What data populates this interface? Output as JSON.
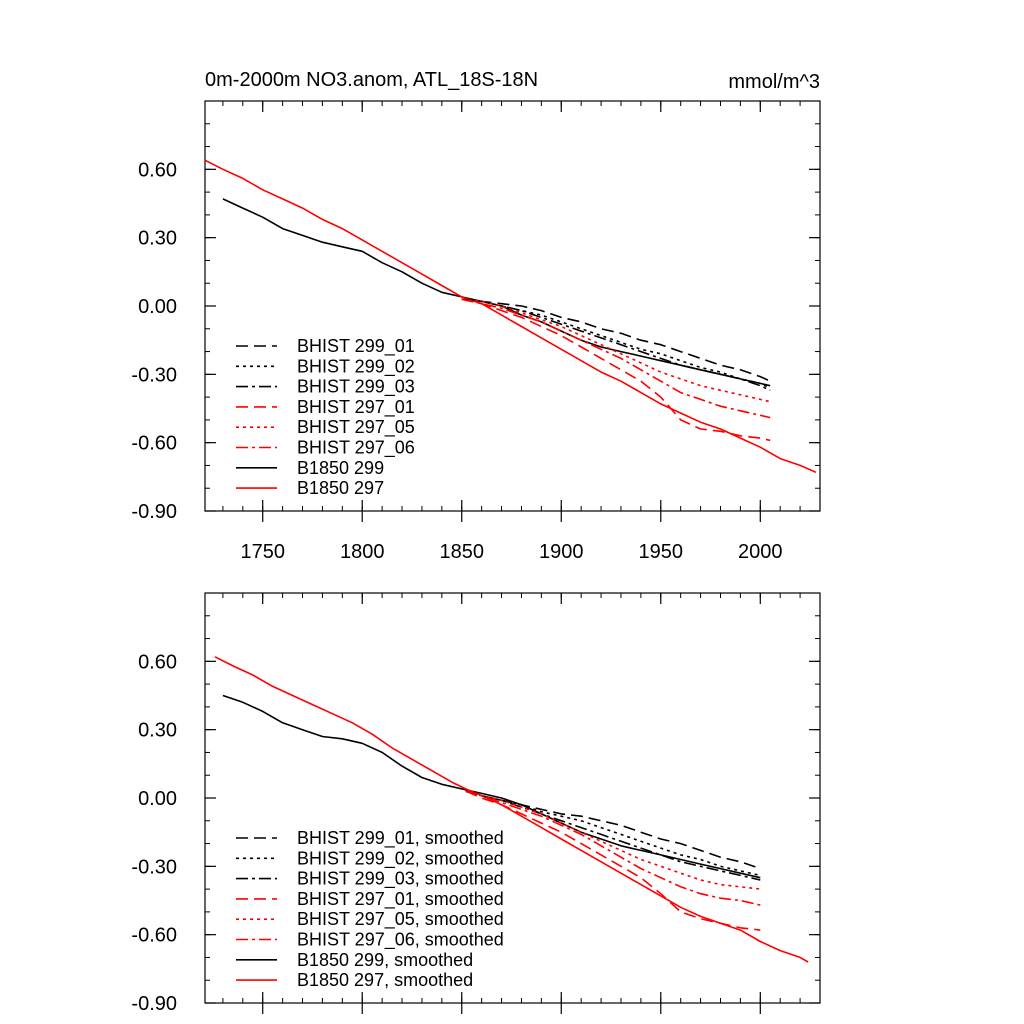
{
  "chart_data": [
    {
      "type": "line",
      "title": "0m-2000m NO3.anom, ATL_18S-18N",
      "units": "mmol/m^3",
      "xlim": [
        1721,
        2030
      ],
      "ylim": [
        -0.9,
        0.9
      ],
      "xticks": [
        1750,
        1800,
        1850,
        1900,
        1950,
        2000
      ],
      "xtick_labels": [
        "1750",
        "1800",
        "1850",
        "1900",
        "1950",
        "2000"
      ],
      "yticks": [
        0.6,
        0.3,
        0.0,
        -0.3,
        -0.6,
        -0.9
      ],
      "ytick_labels": [
        "0.60",
        "0.30",
        "0.00",
        "-0.30",
        "-0.60",
        "-0.90"
      ],
      "legend_position": "lower-left",
      "series": [
        {
          "name": "BHIST 299_01",
          "color": "#000000",
          "dash": "dashed",
          "x": [
            1850,
            1860,
            1870,
            1880,
            1890,
            1900,
            1910,
            1920,
            1930,
            1940,
            1950,
            1960,
            1970,
            1980,
            1990,
            2000,
            2005
          ],
          "y": [
            0.03,
            0.02,
            0.01,
            0.0,
            -0.02,
            -0.05,
            -0.07,
            -0.1,
            -0.12,
            -0.15,
            -0.17,
            -0.2,
            -0.23,
            -0.26,
            -0.28,
            -0.31,
            -0.33
          ]
        },
        {
          "name": "BHIST 299_02",
          "color": "#000000",
          "dash": "dotted",
          "x": [
            1850,
            1860,
            1870,
            1880,
            1890,
            1900,
            1910,
            1920,
            1930,
            1940,
            1950,
            1960,
            1970,
            1980,
            1990,
            2000,
            2005
          ],
          "y": [
            0.03,
            0.02,
            0.0,
            -0.02,
            -0.04,
            -0.07,
            -0.1,
            -0.13,
            -0.16,
            -0.19,
            -0.21,
            -0.24,
            -0.27,
            -0.29,
            -0.32,
            -0.34,
            -0.36
          ]
        },
        {
          "name": "BHIST 299_03",
          "color": "#000000",
          "dash": "dashdot",
          "x": [
            1850,
            1860,
            1870,
            1880,
            1890,
            1900,
            1910,
            1920,
            1930,
            1940,
            1950,
            1960,
            1970,
            1980,
            1990,
            2000,
            2005
          ],
          "y": [
            0.03,
            0.02,
            0.0,
            -0.02,
            -0.05,
            -0.08,
            -0.11,
            -0.14,
            -0.17,
            -0.2,
            -0.23,
            -0.26,
            -0.28,
            -0.3,
            -0.32,
            -0.35,
            -0.37
          ]
        },
        {
          "name": "BHIST 297_01",
          "color": "#ff0000",
          "dash": "dashed",
          "x": [
            1850,
            1860,
            1870,
            1880,
            1890,
            1900,
            1910,
            1920,
            1930,
            1940,
            1950,
            1960,
            1970,
            1980,
            1990,
            2000,
            2005
          ],
          "y": [
            0.03,
            0.01,
            -0.02,
            -0.05,
            -0.09,
            -0.13,
            -0.18,
            -0.23,
            -0.28,
            -0.33,
            -0.4,
            -0.5,
            -0.54,
            -0.55,
            -0.57,
            -0.58,
            -0.59
          ]
        },
        {
          "name": "BHIST 297_05",
          "color": "#ff0000",
          "dash": "dotted",
          "x": [
            1850,
            1860,
            1870,
            1880,
            1890,
            1900,
            1910,
            1920,
            1930,
            1940,
            1950,
            1960,
            1970,
            1980,
            1990,
            2000,
            2005
          ],
          "y": [
            0.03,
            0.02,
            0.0,
            -0.03,
            -0.06,
            -0.09,
            -0.13,
            -0.17,
            -0.21,
            -0.25,
            -0.29,
            -0.32,
            -0.35,
            -0.37,
            -0.39,
            -0.41,
            -0.42
          ]
        },
        {
          "name": "BHIST 297_06",
          "color": "#ff0000",
          "dash": "dashdot",
          "x": [
            1850,
            1860,
            1870,
            1880,
            1890,
            1900,
            1910,
            1920,
            1930,
            1940,
            1950,
            1960,
            1970,
            1980,
            1990,
            2000,
            2005
          ],
          "y": [
            0.03,
            0.01,
            -0.01,
            -0.04,
            -0.07,
            -0.11,
            -0.15,
            -0.19,
            -0.23,
            -0.28,
            -0.33,
            -0.38,
            -0.41,
            -0.44,
            -0.46,
            -0.48,
            -0.49
          ]
        },
        {
          "name": "B1850 299",
          "color": "#000000",
          "dash": "solid",
          "x": [
            1730,
            1740,
            1750,
            1760,
            1770,
            1780,
            1790,
            1800,
            1810,
            1820,
            1830,
            1840,
            1850,
            1860,
            1870,
            1880,
            1890,
            1900,
            1910,
            1920,
            1930,
            1940,
            1950,
            1960,
            1970,
            1980,
            1990,
            2000,
            2005
          ],
          "y": [
            0.47,
            0.43,
            0.39,
            0.34,
            0.31,
            0.28,
            0.26,
            0.24,
            0.19,
            0.15,
            0.1,
            0.06,
            0.04,
            0.02,
            0.0,
            -0.04,
            -0.07,
            -0.11,
            -0.15,
            -0.18,
            -0.2,
            -0.22,
            -0.24,
            -0.26,
            -0.28,
            -0.3,
            -0.32,
            -0.34,
            -0.35
          ]
        },
        {
          "name": "B1850 297",
          "color": "#ff0000",
          "dash": "solid",
          "x": [
            1721,
            1730,
            1740,
            1750,
            1760,
            1770,
            1780,
            1790,
            1800,
            1810,
            1820,
            1830,
            1840,
            1850,
            1860,
            1870,
            1880,
            1890,
            1900,
            1910,
            1920,
            1930,
            1940,
            1950,
            1960,
            1970,
            1980,
            1990,
            2000,
            2010,
            2020,
            2028
          ],
          "y": [
            0.64,
            0.6,
            0.56,
            0.51,
            0.47,
            0.43,
            0.38,
            0.34,
            0.29,
            0.24,
            0.19,
            0.14,
            0.09,
            0.04,
            0.01,
            -0.04,
            -0.09,
            -0.14,
            -0.19,
            -0.24,
            -0.29,
            -0.33,
            -0.38,
            -0.43,
            -0.47,
            -0.51,
            -0.54,
            -0.58,
            -0.62,
            -0.67,
            -0.7,
            -0.73
          ]
        }
      ]
    },
    {
      "type": "line",
      "title": "",
      "units": "",
      "xlim": [
        1721,
        2030
      ],
      "ylim": [
        -0.9,
        0.9
      ],
      "xticks": [
        1750,
        1800,
        1850,
        1900,
        1950,
        2000
      ],
      "xtick_labels": [
        "",
        "",
        "",
        "",
        "",
        ""
      ],
      "yticks": [
        0.6,
        0.3,
        0.0,
        -0.3,
        -0.6,
        -0.9
      ],
      "ytick_labels": [
        "0.60",
        "0.30",
        "0.00",
        "-0.30",
        "-0.60",
        "-0.90"
      ],
      "legend_position": "lower-left",
      "series": [
        {
          "name": "BHIST 299_01, smoothed",
          "color": "#000000",
          "dash": "dashed",
          "x": [
            1852,
            1860,
            1870,
            1880,
            1890,
            1900,
            1910,
            1920,
            1930,
            1940,
            1950,
            1960,
            1970,
            1980,
            1990,
            2000
          ],
          "y": [
            0.03,
            0.01,
            -0.01,
            -0.03,
            -0.05,
            -0.07,
            -0.08,
            -0.1,
            -0.12,
            -0.15,
            -0.18,
            -0.2,
            -0.23,
            -0.26,
            -0.28,
            -0.31
          ]
        },
        {
          "name": "BHIST 299_02, smoothed",
          "color": "#000000",
          "dash": "dotted",
          "x": [
            1852,
            1860,
            1870,
            1880,
            1890,
            1900,
            1910,
            1920,
            1930,
            1940,
            1950,
            1960,
            1970,
            1980,
            1990,
            2000
          ],
          "y": [
            0.03,
            0.01,
            -0.01,
            -0.03,
            -0.06,
            -0.08,
            -0.1,
            -0.13,
            -0.16,
            -0.19,
            -0.22,
            -0.25,
            -0.27,
            -0.3,
            -0.32,
            -0.34
          ]
        },
        {
          "name": "BHIST 299_03, smoothed",
          "color": "#000000",
          "dash": "dashdot",
          "x": [
            1852,
            1860,
            1870,
            1880,
            1890,
            1900,
            1910,
            1920,
            1930,
            1940,
            1950,
            1960,
            1970,
            1980,
            1990,
            2000
          ],
          "y": [
            0.03,
            0.01,
            -0.01,
            -0.04,
            -0.07,
            -0.1,
            -0.13,
            -0.16,
            -0.19,
            -0.22,
            -0.25,
            -0.28,
            -0.3,
            -0.32,
            -0.34,
            -0.36
          ]
        },
        {
          "name": "BHIST 297_01, smoothed",
          "color": "#ff0000",
          "dash": "dashed",
          "x": [
            1852,
            1860,
            1870,
            1880,
            1890,
            1900,
            1910,
            1920,
            1930,
            1940,
            1950,
            1960,
            1970,
            1980,
            1990,
            2000
          ],
          "y": [
            0.03,
            0.0,
            -0.03,
            -0.07,
            -0.11,
            -0.15,
            -0.2,
            -0.25,
            -0.3,
            -0.35,
            -0.42,
            -0.5,
            -0.53,
            -0.55,
            -0.57,
            -0.58
          ]
        },
        {
          "name": "BHIST 297_05, smoothed",
          "color": "#ff0000",
          "dash": "dotted",
          "x": [
            1852,
            1860,
            1870,
            1880,
            1890,
            1900,
            1910,
            1920,
            1930,
            1940,
            1950,
            1960,
            1970,
            1980,
            1990,
            2000
          ],
          "y": [
            0.03,
            0.01,
            -0.01,
            -0.04,
            -0.07,
            -0.11,
            -0.15,
            -0.19,
            -0.23,
            -0.27,
            -0.3,
            -0.33,
            -0.36,
            -0.38,
            -0.39,
            -0.4
          ]
        },
        {
          "name": "BHIST 297_06, smoothed",
          "color": "#ff0000",
          "dash": "dashdot",
          "x": [
            1852,
            1860,
            1870,
            1880,
            1890,
            1900,
            1910,
            1920,
            1930,
            1940,
            1950,
            1960,
            1970,
            1980,
            1990,
            2000
          ],
          "y": [
            0.03,
            0.01,
            -0.02,
            -0.05,
            -0.08,
            -0.12,
            -0.16,
            -0.21,
            -0.26,
            -0.31,
            -0.35,
            -0.39,
            -0.42,
            -0.44,
            -0.45,
            -0.47
          ]
        },
        {
          "name": "B1850 299, smoothed",
          "color": "#000000",
          "dash": "solid",
          "x": [
            1730,
            1740,
            1750,
            1760,
            1770,
            1780,
            1790,
            1800,
            1810,
            1820,
            1830,
            1840,
            1850,
            1860,
            1870,
            1880,
            1890,
            1900,
            1910,
            1920,
            1930,
            1940,
            1950,
            1960,
            1970,
            1980,
            1990,
            2000
          ],
          "y": [
            0.45,
            0.42,
            0.38,
            0.33,
            0.3,
            0.27,
            0.26,
            0.24,
            0.2,
            0.14,
            0.09,
            0.06,
            0.04,
            0.02,
            0.0,
            -0.03,
            -0.07,
            -0.11,
            -0.15,
            -0.18,
            -0.21,
            -0.23,
            -0.25,
            -0.27,
            -0.29,
            -0.31,
            -0.33,
            -0.35
          ]
        },
        {
          "name": "B1850 297, smoothed",
          "color": "#ff0000",
          "dash": "solid",
          "x": [
            1726,
            1735,
            1745,
            1755,
            1765,
            1775,
            1785,
            1795,
            1805,
            1815,
            1825,
            1835,
            1845,
            1852,
            1860,
            1870,
            1880,
            1890,
            1900,
            1910,
            1920,
            1930,
            1940,
            1950,
            1960,
            1970,
            1980,
            1990,
            2000,
            2010,
            2020,
            2024
          ],
          "y": [
            0.62,
            0.58,
            0.54,
            0.49,
            0.45,
            0.41,
            0.37,
            0.33,
            0.28,
            0.22,
            0.17,
            0.12,
            0.07,
            0.04,
            0.01,
            -0.03,
            -0.08,
            -0.13,
            -0.18,
            -0.23,
            -0.28,
            -0.33,
            -0.38,
            -0.43,
            -0.48,
            -0.52,
            -0.55,
            -0.58,
            -0.63,
            -0.67,
            -0.7,
            -0.72
          ]
        }
      ]
    }
  ]
}
